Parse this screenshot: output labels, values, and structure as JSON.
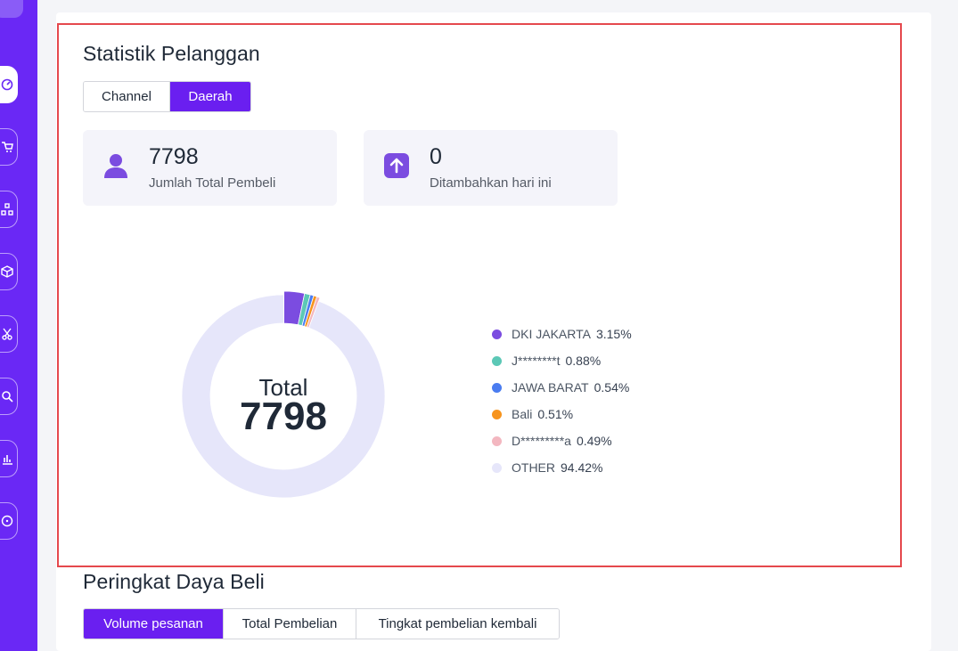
{
  "colors": {
    "sidebar": "#6a28f5",
    "accent": "#6a1ff0",
    "highlight": "#e5484d"
  },
  "sidebar": {
    "items": [
      {
        "icon": "dashboard-icon",
        "active": true
      },
      {
        "icon": "cart-icon",
        "active": false
      },
      {
        "icon": "sitemap-icon",
        "active": false
      },
      {
        "icon": "box-icon",
        "active": false
      },
      {
        "icon": "scissors-icon",
        "active": false
      },
      {
        "icon": "search-icon",
        "active": false
      },
      {
        "icon": "bar-chart-icon",
        "active": false
      },
      {
        "icon": "more-icon",
        "active": false
      }
    ]
  },
  "customer_stats": {
    "title": "Statistik Pelanggan",
    "tabs": [
      {
        "label": "Channel",
        "active": false
      },
      {
        "label": "Daerah",
        "active": true
      }
    ],
    "cards": [
      {
        "value": "7798",
        "label": "Jumlah Total Pembeli",
        "icon": "user-icon"
      },
      {
        "value": "0",
        "label": "Ditambahkan hari ini",
        "icon": "arrow-up-icon"
      }
    ],
    "donut": {
      "center_label": "Total",
      "center_value": "7798"
    }
  },
  "chart_data": {
    "type": "pie",
    "title": "",
    "categories": [
      "DKI JAKARTA",
      "J********t",
      "JAWA BARAT",
      "Bali",
      "D*********a",
      "OTHER"
    ],
    "values": [
      3.15,
      0.88,
      0.54,
      0.51,
      0.49,
      94.42
    ],
    "labels": [
      "3.15%",
      "0.88%",
      "0.54%",
      "0.51%",
      "0.49%",
      "94.42%"
    ],
    "colors": [
      "#7b4ce0",
      "#5cc8b6",
      "#4a7cf0",
      "#f7941d",
      "#f3b7c0",
      "#e6e6fa"
    ],
    "legend": "right"
  },
  "purchasing_rank": {
    "title": "Peringkat Daya Beli",
    "tabs": [
      {
        "label": "Volume pesanan",
        "active": true
      },
      {
        "label": "Total Pembelian",
        "active": false
      },
      {
        "label": "Tingkat pembelian kembali",
        "active": false
      }
    ]
  }
}
